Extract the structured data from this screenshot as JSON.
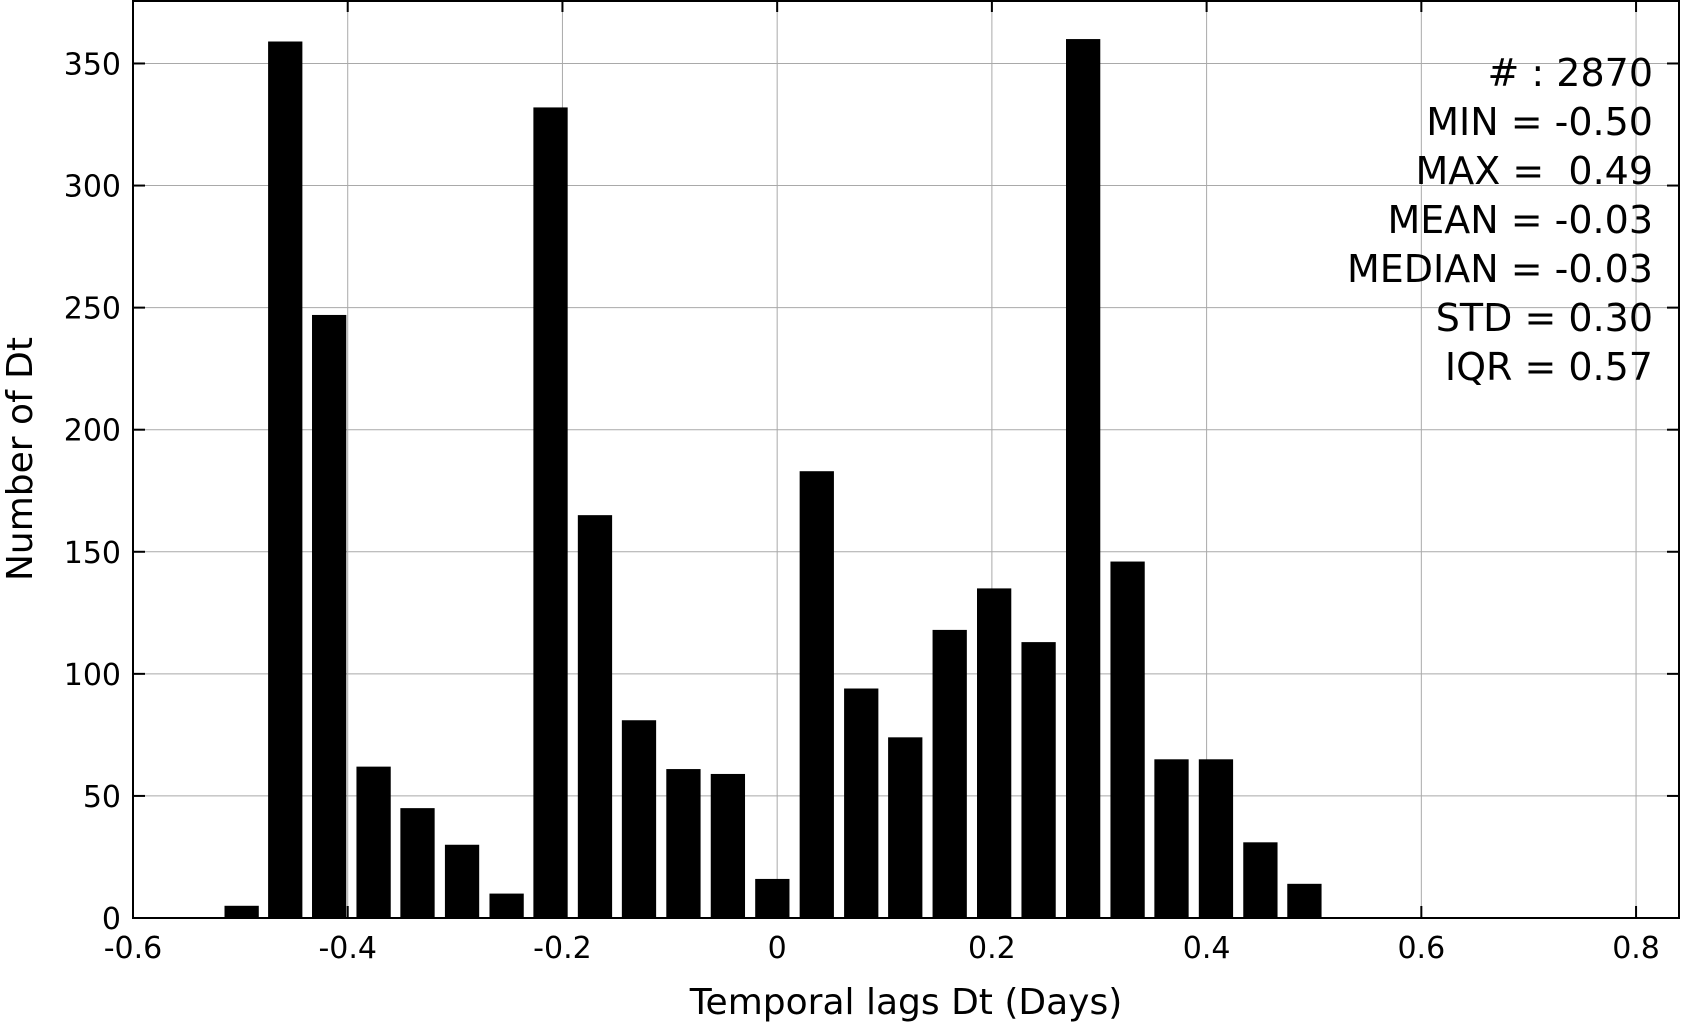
{
  "chart_data": {
    "type": "bar",
    "xlabel": "Temporal lags Dt (Days)",
    "ylabel": "Number of Dt",
    "xlim": [
      -0.6,
      0.84
    ],
    "ylim": [
      0,
      376
    ],
    "xticks": [
      -0.6,
      -0.4,
      -0.2,
      0,
      0.2,
      0.4,
      0.6,
      0.8
    ],
    "xtick_labels": [
      "-0.6",
      "-0.4",
      "-0.2",
      "0",
      "0.2",
      "0.4",
      "0.6",
      "0.8"
    ],
    "yticks": [
      0,
      50,
      100,
      150,
      200,
      250,
      300,
      350
    ],
    "ytick_labels": [
      "0",
      "50",
      "100",
      "150",
      "200",
      "250",
      "300",
      "350"
    ],
    "grid": true,
    "bar_width": 0.0155,
    "bars": [
      {
        "x": -0.4988,
        "y": 5
      },
      {
        "x": -0.4582,
        "y": 359
      },
      {
        "x": -0.4173,
        "y": 247
      },
      {
        "x": -0.3759,
        "y": 62
      },
      {
        "x": -0.335,
        "y": 45
      },
      {
        "x": -0.2935,
        "y": 30
      },
      {
        "x": -0.252,
        "y": 10
      },
      {
        "x": -0.2111,
        "y": 332
      },
      {
        "x": -0.1697,
        "y": 165
      },
      {
        "x": -0.1287,
        "y": 81
      },
      {
        "x": -0.0873,
        "y": 61
      },
      {
        "x": -0.0459,
        "y": 59
      },
      {
        "x": -0.0045,
        "y": 16
      },
      {
        "x": 0.0369,
        "y": 183
      },
      {
        "x": 0.0783,
        "y": 94
      },
      {
        "x": 0.1193,
        "y": 74
      },
      {
        "x": 0.1607,
        "y": 118
      },
      {
        "x": 0.2021,
        "y": 135
      },
      {
        "x": 0.2435,
        "y": 113
      },
      {
        "x": 0.285,
        "y": 360
      },
      {
        "x": 0.3264,
        "y": 146
      },
      {
        "x": 0.3673,
        "y": 65
      },
      {
        "x": 0.4087,
        "y": 65
      },
      {
        "x": 0.4501,
        "y": 31
      },
      {
        "x": 0.4911,
        "y": 14
      }
    ],
    "annotations": [
      "# : 2870",
      "MIN = -0.50",
      "MAX =  0.49",
      "MEAN = -0.03",
      "MEDIAN = -0.03",
      "STD = 0.30",
      "IQR = 0.57"
    ],
    "bar_color": "#000000",
    "grid_color": "#a9a9a9"
  }
}
